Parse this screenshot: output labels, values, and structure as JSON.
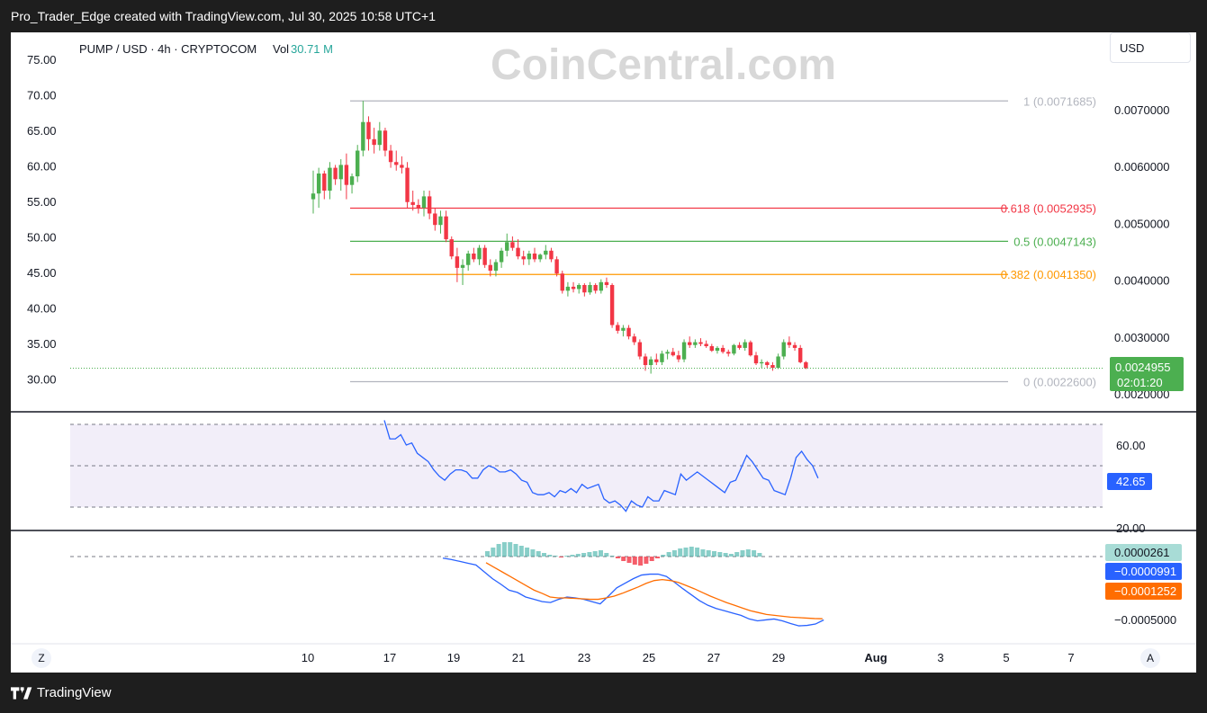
{
  "header": {
    "title": "Pro_Trader_Edge created with TradingView.com, Jul 30, 2025 10:58 UTC+1"
  },
  "footer": {
    "brand": "TradingView"
  },
  "chart": {
    "symbol": "PUMP / USD · 4h · CRYPTOCOM",
    "vol_label": "Vol",
    "vol_value": "30.71 M",
    "watermark": "CoinCentral.com",
    "currency_button": "USD",
    "price_badge": "0.0024955",
    "countdown": "02:01:20",
    "right_axis_ticks": [
      "0.0070000",
      "0.0060000",
      "0.0050000",
      "0.0040000",
      "0.0030000",
      "0.0020000"
    ],
    "left_axis_ticks": [
      "75.00",
      "70.00",
      "65.00",
      "60.00",
      "55.00",
      "50.00",
      "45.00",
      "40.00",
      "35.00",
      "30.00"
    ],
    "x_axis_ticks": [
      "10",
      "17",
      "19",
      "21",
      "23",
      "25",
      "27",
      "29",
      "Aug",
      "3",
      "5",
      "7"
    ],
    "fib_levels": [
      {
        "label": "1 (0.0071685)",
        "price": 0.0071685,
        "color": "#b2b5be"
      },
      {
        "label": "0.618 (0.0052935)",
        "price": 0.0052935,
        "color": "#f23645"
      },
      {
        "label": "0.5 (0.0047143)",
        "price": 0.0047143,
        "color": "#4caf50"
      },
      {
        "label": "0.382 (0.0041350)",
        "price": 0.004135,
        "color": "#ff9800"
      },
      {
        "label": "0 (0.0022600)",
        "price": 0.00226,
        "color": "#b2b5be"
      }
    ],
    "scale_left_button": "Z",
    "scale_right_button": "A"
  },
  "rsi": {
    "ticks": [
      "60.00",
      "20.00"
    ],
    "value_badge": "42.65",
    "band_color": "#7e57c2"
  },
  "macd": {
    "histogram_badge": "0.0000261",
    "macd_badge": "−0.0000991",
    "signal_badge": "−0.0001252",
    "tick": "−0.0005000",
    "macd_color": "#2962ff",
    "signal_color": "#ff6d00"
  },
  "chart_data": {
    "type": "candlestick",
    "title": "PUMP / USD · 4h · CRYPTOCOM",
    "x_ticks": [
      "10",
      "17",
      "19",
      "21",
      "23",
      "25",
      "27",
      "29",
      "Aug",
      "3",
      "5",
      "7"
    ],
    "ylim": [
      0.0019,
      0.0076
    ],
    "candles": [
      [
        0.00545,
        0.00595,
        0.0052,
        0.00555
      ],
      [
        0.00555,
        0.006,
        0.0053,
        0.0059
      ],
      [
        0.0059,
        0.00595,
        0.00545,
        0.0056
      ],
      [
        0.0056,
        0.0061,
        0.00545,
        0.006
      ],
      [
        0.006,
        0.00605,
        0.0057,
        0.0058
      ],
      [
        0.0058,
        0.00615,
        0.0056,
        0.00605
      ],
      [
        0.00605,
        0.00625,
        0.00545,
        0.0057
      ],
      [
        0.0057,
        0.0059,
        0.00555,
        0.00585
      ],
      [
        0.00585,
        0.0064,
        0.00575,
        0.0063
      ],
      [
        0.0063,
        0.00717,
        0.0062,
        0.0068
      ],
      [
        0.0068,
        0.0069,
        0.0063,
        0.0065
      ],
      [
        0.0065,
        0.0067,
        0.00625,
        0.0064
      ],
      [
        0.0064,
        0.0068,
        0.0063,
        0.00665
      ],
      [
        0.00665,
        0.0067,
        0.0062,
        0.0063
      ],
      [
        0.0063,
        0.0064,
        0.006,
        0.0061
      ],
      [
        0.0061,
        0.0063,
        0.00595,
        0.00605
      ],
      [
        0.00605,
        0.0062,
        0.0059,
        0.006
      ],
      [
        0.006,
        0.0061,
        0.0053,
        0.0054
      ],
      [
        0.0054,
        0.0056,
        0.00525,
        0.00535
      ],
      [
        0.00535,
        0.00545,
        0.0052,
        0.0053
      ],
      [
        0.0053,
        0.0056,
        0.00515,
        0.0055
      ],
      [
        0.0055,
        0.0056,
        0.0051,
        0.0052
      ],
      [
        0.0052,
        0.0053,
        0.0049,
        0.005
      ],
      [
        0.005,
        0.00525,
        0.00485,
        0.00515
      ],
      [
        0.00515,
        0.00525,
        0.0047,
        0.00475
      ],
      [
        0.00475,
        0.0048,
        0.0044,
        0.00445
      ],
      [
        0.00445,
        0.0046,
        0.004,
        0.00425
      ],
      [
        0.00425,
        0.0044,
        0.00395,
        0.0043
      ],
      [
        0.0043,
        0.00455,
        0.0042,
        0.0045
      ],
      [
        0.0045,
        0.0046,
        0.00435,
        0.0044
      ],
      [
        0.0044,
        0.00465,
        0.0043,
        0.0046
      ],
      [
        0.0046,
        0.00465,
        0.00425,
        0.0043
      ],
      [
        0.0043,
        0.0044,
        0.0041,
        0.0042
      ],
      [
        0.0042,
        0.0044,
        0.0041,
        0.00435
      ],
      [
        0.00435,
        0.0046,
        0.00425,
        0.00455
      ],
      [
        0.00455,
        0.00485,
        0.00445,
        0.0047
      ],
      [
        0.0047,
        0.0048,
        0.00455,
        0.0046
      ],
      [
        0.0046,
        0.00475,
        0.0044,
        0.00445
      ],
      [
        0.00445,
        0.00455,
        0.0043,
        0.0044
      ],
      [
        0.0044,
        0.00455,
        0.0043,
        0.0045
      ],
      [
        0.0045,
        0.0046,
        0.00435,
        0.0044
      ],
      [
        0.0044,
        0.0045,
        0.00435,
        0.00448
      ],
      [
        0.00448,
        0.00465,
        0.0044,
        0.00455
      ],
      [
        0.00455,
        0.0046,
        0.00435,
        0.0044
      ],
      [
        0.0044,
        0.00445,
        0.0041,
        0.00415
      ],
      [
        0.00415,
        0.0042,
        0.0038,
        0.00385
      ],
      [
        0.00385,
        0.004,
        0.00375,
        0.00392
      ],
      [
        0.00392,
        0.004,
        0.00382,
        0.00388
      ],
      [
        0.00388,
        0.00398,
        0.0038,
        0.00395
      ],
      [
        0.00395,
        0.00398,
        0.00375,
        0.00382
      ],
      [
        0.00382,
        0.004,
        0.00378,
        0.00395
      ],
      [
        0.00395,
        0.00398,
        0.0038,
        0.00385
      ],
      [
        0.00385,
        0.00405,
        0.0038,
        0.004
      ],
      [
        0.004,
        0.00408,
        0.0039,
        0.00395
      ],
      [
        0.00395,
        0.00398,
        0.0032,
        0.00325
      ],
      [
        0.00325,
        0.0033,
        0.0031,
        0.00315
      ],
      [
        0.00315,
        0.00325,
        0.00305,
        0.0032
      ],
      [
        0.0032,
        0.00325,
        0.003,
        0.00305
      ],
      [
        0.00305,
        0.0031,
        0.0029,
        0.00295
      ],
      [
        0.00295,
        0.003,
        0.00265,
        0.0027
      ],
      [
        0.0027,
        0.00275,
        0.00245,
        0.00255
      ],
      [
        0.00255,
        0.0027,
        0.0024,
        0.00265
      ],
      [
        0.00265,
        0.00275,
        0.00255,
        0.0026
      ],
      [
        0.0026,
        0.0028,
        0.00255,
        0.00275
      ],
      [
        0.00275,
        0.00282,
        0.00265,
        0.00278
      ],
      [
        0.00278,
        0.00285,
        0.0027,
        0.00272
      ],
      [
        0.00272,
        0.0028,
        0.0026,
        0.00265
      ],
      [
        0.00265,
        0.003,
        0.0026,
        0.00295
      ],
      [
        0.00295,
        0.00305,
        0.00285,
        0.0029
      ],
      [
        0.0029,
        0.003,
        0.00285,
        0.00295
      ],
      [
        0.00295,
        0.00302,
        0.00288,
        0.00292
      ],
      [
        0.00292,
        0.00298,
        0.00285,
        0.00288
      ],
      [
        0.00288,
        0.00292,
        0.00278,
        0.0028
      ],
      [
        0.0028,
        0.00288,
        0.00275,
        0.00285
      ],
      [
        0.00285,
        0.0029,
        0.00275,
        0.00278
      ],
      [
        0.00278,
        0.00282,
        0.0027,
        0.00275
      ],
      [
        0.00275,
        0.00292,
        0.00272,
        0.0029
      ],
      [
        0.0029,
        0.00295,
        0.00282,
        0.00285
      ],
      [
        0.00285,
        0.003,
        0.0028,
        0.00295
      ],
      [
        0.00295,
        0.00298,
        0.0027,
        0.00272
      ],
      [
        0.00272,
        0.00278,
        0.00255,
        0.00258
      ],
      [
        0.00258,
        0.00265,
        0.0025,
        0.0026
      ],
      [
        0.0026,
        0.00262,
        0.0025,
        0.00255
      ],
      [
        0.00255,
        0.0026,
        0.00245,
        0.0025
      ],
      [
        0.0025,
        0.00275,
        0.00248,
        0.0027
      ],
      [
        0.0027,
        0.003,
        0.00265,
        0.00295
      ],
      [
        0.00295,
        0.00305,
        0.00285,
        0.0029
      ],
      [
        0.0029,
        0.00295,
        0.0028,
        0.00285
      ],
      [
        0.00285,
        0.0029,
        0.00258,
        0.0026
      ],
      [
        0.0026,
        0.00262,
        0.00248,
        0.0024955
      ]
    ],
    "rsi_values": [
      72,
      63,
      63,
      65,
      60,
      61,
      56,
      54,
      52,
      48,
      45,
      43,
      46,
      48,
      48,
      47,
      44,
      44,
      48,
      50,
      49,
      47,
      47,
      48,
      46,
      43,
      42,
      37,
      36,
      36,
      37,
      35,
      38,
      37,
      39,
      37,
      41,
      39,
      40,
      41,
      34,
      32,
      33,
      31,
      28,
      33,
      31,
      30,
      35,
      33,
      33,
      38,
      37,
      36,
      46,
      43,
      45,
      47,
      45,
      43,
      41,
      39,
      37,
      42,
      43,
      49,
      55,
      52,
      48,
      44,
      43,
      38,
      37,
      36,
      44,
      54,
      57,
      53,
      50,
      44
    ],
    "macd_line": [
      -0.00145,
      -0.00142,
      -0.00138,
      -0.00134,
      -0.0013,
      -0.00115,
      -0.001,
      -0.00088,
      -0.00075,
      -0.0007,
      -0.0006,
      -0.00055,
      -0.0005,
      -0.00048,
      -0.00055,
      -0.0006,
      -0.00058,
      -0.00055,
      -0.0005,
      -0.00045,
      -0.00062,
      -0.0008,
      -0.0009,
      -0.001,
      -0.00108,
      -0.0011,
      -0.0011,
      -0.00105,
      -0.00092,
      -0.00078,
      -0.00065,
      -0.00052,
      -0.00042,
      -0.00035,
      -0.0003,
      -0.00025,
      -0.0002,
      -0.00012,
      -8e-05,
      -0.0001,
      -0.00012,
      -8e-05,
      -2e-05,
      3e-05,
      2e-05,
      -1e-05,
      -9.91e-05
    ],
    "signal_line": [
      -0.00135,
      -0.00125,
      -0.00115,
      -0.00105,
      -0.00095,
      -0.00085,
      -0.00075,
      -0.00068,
      -0.0006,
      -0.00058,
      -0.00058,
      -0.00057,
      -0.00056,
      -0.00055,
      -0.00055,
      -0.00058,
      -0.00062,
      -0.00068,
      -0.00075,
      -0.00082,
      -0.0009,
      -0.00096,
      -0.00098,
      -0.00096,
      -0.00092,
      -0.00085,
      -0.00078,
      -0.0007,
      -0.00062,
      -0.00055,
      -0.00048,
      -0.00042,
      -0.00036,
      -0.0003,
      -0.00026,
      -0.00022,
      -0.0002,
      -0.00018,
      -0.00016,
      -0.00015,
      -0.00014,
      -0.00013,
      -0.0001252
    ],
    "macd_hist": [
      3,
      5,
      7,
      8,
      8,
      7,
      6,
      5,
      4,
      3,
      2,
      1,
      0.5,
      -0.5,
      0.5,
      1,
      1.5,
      2,
      2.5,
      3,
      3.5,
      2,
      0.5,
      -1,
      -2.5,
      -3.5,
      -4.5,
      -5,
      -4,
      -2.5,
      -1,
      1,
      2.5,
      3.5,
      4.5,
      5,
      5.5,
      5,
      4,
      3.5,
      3,
      2.5,
      2,
      1.5,
      2.5,
      3.5,
      4,
      3.5,
      2
    ]
  }
}
